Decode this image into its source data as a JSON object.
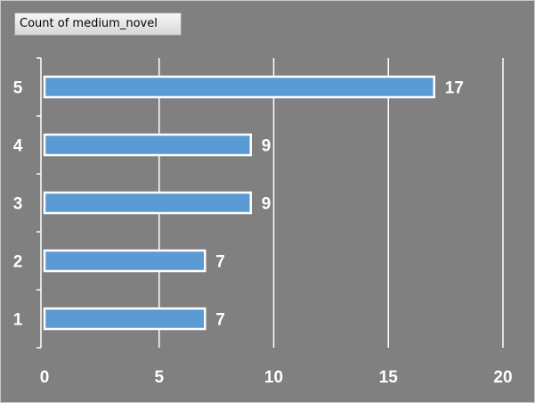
{
  "field_button": {
    "label": "Count of medium_novel"
  },
  "colors": {
    "background": "#808080",
    "bar": "#5b9bd5",
    "bar_border": "#ffffff",
    "text": "#ffffff",
    "grid": "#ffffff"
  },
  "chart_data": {
    "type": "bar",
    "orientation": "horizontal",
    "title": "",
    "xlabel": "",
    "ylabel": "",
    "categories": [
      "1",
      "2",
      "3",
      "4",
      "5"
    ],
    "values": [
      7,
      7,
      9,
      9,
      17
    ],
    "data_labels": [
      "7",
      "7",
      "9",
      "9",
      "17"
    ],
    "xlim": [
      0,
      20
    ],
    "x_ticks": [
      0,
      5,
      10,
      15,
      20
    ],
    "x_tick_labels": [
      "0",
      "5",
      "10",
      "15",
      "20"
    ],
    "grid": true,
    "legend": "none"
  }
}
